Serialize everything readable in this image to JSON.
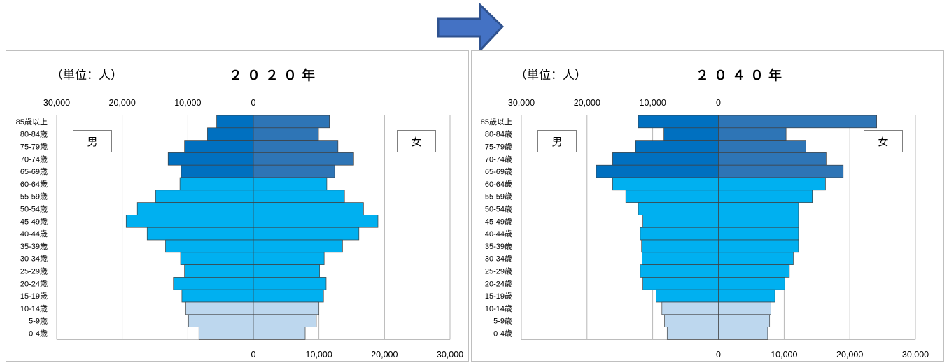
{
  "colors": {
    "elderly_male": "#0070C0",
    "elderly_female": "#2E75B6",
    "working": "#00B0F0",
    "youth": "#BDD7EE",
    "bar_border": "#404040",
    "grid": "#a6a6a6",
    "arrow_fill": "#4472C4",
    "arrow_stroke": "#2F528F"
  },
  "icons": {
    "arrow": "right-arrow-icon"
  },
  "chart_data": [
    {
      "type": "bar",
      "orientation": "horizontal",
      "layout": "population-pyramid",
      "unit_label": "（単位：人）",
      "title": "２０２０年",
      "label_male": "男",
      "label_female": "女",
      "top_ticks": [
        "30,000",
        "20,000",
        "10,000",
        "0"
      ],
      "bottom_ticks": [
        "0",
        "10,000",
        "20,000",
        "30,000"
      ],
      "xlim": [
        -30000,
        30000
      ],
      "grid": true,
      "categories": [
        "85歳以上",
        "80-84歳",
        "75-79歳",
        "70-74歳",
        "65-69歳",
        "60-64歳",
        "55-59歳",
        "50-54歳",
        "45-49歳",
        "40-44歳",
        "35-39歳",
        "30-34歳",
        "25-29歳",
        "20-24歳",
        "15-19歳",
        "10-14歳",
        "5-9歳",
        "0-4歳"
      ],
      "series": [
        {
          "values": [
            5600,
            7000,
            10500,
            13000,
            11000,
            11200,
            14900,
            17700,
            19400,
            16200,
            13400,
            11100,
            10500,
            12200,
            10900,
            10300,
            9900,
            8300
          ]
        },
        {
          "values": [
            11600,
            9900,
            12900,
            15300,
            12400,
            11200,
            13900,
            16800,
            19000,
            16100,
            13600,
            10800,
            10100,
            11100,
            10700,
            10000,
            9600,
            7900
          ]
        }
      ]
    },
    {
      "type": "bar",
      "orientation": "horizontal",
      "layout": "population-pyramid",
      "unit_label": "（単位：人）",
      "title": "２０４０年",
      "label_male": "男",
      "label_female": "女",
      "top_ticks": [
        "30,000",
        "20,000",
        "10,000",
        "0"
      ],
      "bottom_ticks": [
        "0",
        "10,000",
        "20,000",
        "30,000"
      ],
      "xlim": [
        -30000,
        30000
      ],
      "grid": true,
      "categories": [
        "85歳以上",
        "80-84歳",
        "75-79歳",
        "70-74歳",
        "65-69歳",
        "60-64歳",
        "55-59歳",
        "50-54歳",
        "45-49歳",
        "40-44歳",
        "35-39歳",
        "30-34歳",
        "25-29歳",
        "20-24歳",
        "15-19歳",
        "10-14歳",
        "5-9歳",
        "0-4歳"
      ],
      "series": [
        {
          "values": [
            12200,
            8300,
            12600,
            16100,
            18600,
            16100,
            14100,
            12200,
            11500,
            11900,
            11700,
            11600,
            11900,
            11500,
            9500,
            8600,
            8200,
            7800
          ]
        },
        {
          "values": [
            24100,
            10300,
            13300,
            16400,
            19000,
            16300,
            14300,
            12200,
            12200,
            12200,
            12200,
            11400,
            10800,
            10100,
            8600,
            8000,
            7800,
            7500
          ]
        }
      ]
    }
  ]
}
